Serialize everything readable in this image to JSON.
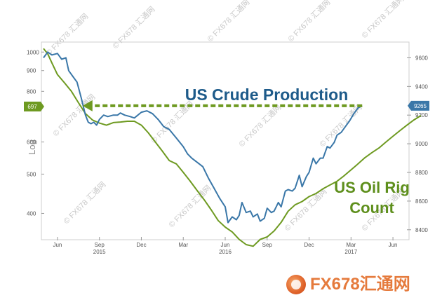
{
  "watermark": "© FX678 汇通网",
  "footer_logo": "FX678汇通网",
  "chart_data": {
    "type": "line",
    "title": "",
    "annotations": [
      "US Crude Production",
      "US Oil Rig Count"
    ],
    "left_axis_label": "Log",
    "left_axis_ticks": [
      "1000",
      "900",
      "800",
      "600",
      "500",
      "400"
    ],
    "right_axis_ticks": [
      "9600",
      "9400",
      "9200",
      "9000",
      "8800",
      "8600",
      "8400"
    ],
    "x_ticks": [
      "Jun",
      "Sep",
      "Dec",
      "Mar",
      "Jun",
      "Sep",
      "Dec",
      "Mar",
      "Jun"
    ],
    "x_year_labels": [
      {
        "label": "2015",
        "at": "Sep"
      },
      {
        "label": "2016",
        "at": "Jun"
      },
      {
        "label": "2017",
        "at": "Mar"
      }
    ],
    "left_axis": {
      "scale": "log",
      "range": [
        350,
        1050
      ]
    },
    "right_axis": {
      "scale": "linear",
      "range": [
        8350,
        9700
      ]
    },
    "x_range": [
      0,
      26
    ],
    "x_unit": "months since May 2015",
    "last_value_labels": {
      "rig_count": "697",
      "crude_production": "9265"
    },
    "series": [
      {
        "name": "US Oil Rig Count",
        "axis": "left",
        "color": "#6e9a21",
        "points": [
          [
            0,
            1020
          ],
          [
            0.3,
            990
          ],
          [
            0.6,
            940
          ],
          [
            1,
            880
          ],
          [
            1.5,
            840
          ],
          [
            2,
            800
          ],
          [
            2.5,
            750
          ],
          [
            3,
            705
          ],
          [
            3.5,
            680
          ],
          [
            4,
            668
          ],
          [
            4.5,
            660
          ],
          [
            5,
            670
          ],
          [
            5.5,
            672
          ],
          [
            6,
            675
          ],
          [
            6.5,
            675
          ],
          [
            7,
            660
          ],
          [
            7.5,
            632
          ],
          [
            8,
            600
          ],
          [
            8.5,
            570
          ],
          [
            9,
            540
          ],
          [
            9.5,
            530
          ],
          [
            10,
            505
          ],
          [
            10.5,
            480
          ],
          [
            11,
            455
          ],
          [
            11.5,
            432
          ],
          [
            12,
            408
          ],
          [
            12.5,
            384
          ],
          [
            13,
            370
          ],
          [
            13.5,
            360
          ],
          [
            14,
            345
          ],
          [
            14.5,
            335
          ],
          [
            15,
            332
          ],
          [
            15.5,
            345
          ],
          [
            16,
            350
          ],
          [
            16.5,
            362
          ],
          [
            17,
            380
          ],
          [
            17.5,
            405
          ],
          [
            18,
            420
          ],
          [
            18.5,
            428
          ],
          [
            19,
            440
          ],
          [
            19.5,
            448
          ],
          [
            20,
            460
          ],
          [
            20.5,
            470
          ],
          [
            21,
            480
          ],
          [
            21.5,
            495
          ],
          [
            22,
            512
          ],
          [
            22.5,
            530
          ],
          [
            23,
            549
          ],
          [
            23.5,
            565
          ],
          [
            24,
            580
          ],
          [
            24.5,
            600
          ],
          [
            25,
            620
          ],
          [
            25.5,
            640
          ],
          [
            26,
            660
          ],
          [
            26.5,
            680
          ],
          [
            27,
            697
          ]
        ]
      },
      {
        "name": "US Crude Production",
        "axis": "right",
        "color": "#3a77a8",
        "points": [
          [
            0,
            9600
          ],
          [
            0.3,
            9640
          ],
          [
            0.6,
            9620
          ],
          [
            1,
            9630
          ],
          [
            1.3,
            9590
          ],
          [
            1.6,
            9600
          ],
          [
            1.8,
            9510
          ],
          [
            2.1,
            9470
          ],
          [
            2.4,
            9430
          ],
          [
            2.7,
            9320
          ],
          [
            3,
            9200
          ],
          [
            3.2,
            9150
          ],
          [
            3.4,
            9140
          ],
          [
            3.6,
            9150
          ],
          [
            3.8,
            9130
          ],
          [
            4,
            9170
          ],
          [
            4.3,
            9200
          ],
          [
            4.6,
            9190
          ],
          [
            5,
            9200
          ],
          [
            5.3,
            9200
          ],
          [
            5.5,
            9215
          ],
          [
            5.8,
            9200
          ],
          [
            6.2,
            9190
          ],
          [
            6.5,
            9180
          ],
          [
            7,
            9220
          ],
          [
            7.4,
            9230
          ],
          [
            7.8,
            9210
          ],
          [
            8.2,
            9170
          ],
          [
            8.6,
            9120
          ],
          [
            9,
            9100
          ],
          [
            9.5,
            9040
          ],
          [
            10,
            8980
          ],
          [
            10.3,
            8930
          ],
          [
            10.6,
            8900
          ],
          [
            11,
            8870
          ],
          [
            11.4,
            8840
          ],
          [
            11.8,
            8760
          ],
          [
            12.2,
            8690
          ],
          [
            12.6,
            8620
          ],
          [
            13,
            8560
          ],
          [
            13.2,
            8450
          ],
          [
            13.5,
            8490
          ],
          [
            13.8,
            8470
          ],
          [
            14,
            8500
          ],
          [
            14.2,
            8590
          ],
          [
            14.5,
            8520
          ],
          [
            14.8,
            8530
          ],
          [
            15,
            8490
          ],
          [
            15.3,
            8510
          ],
          [
            15.5,
            8460
          ],
          [
            15.8,
            8480
          ],
          [
            16,
            8550
          ],
          [
            16.3,
            8520
          ],
          [
            16.5,
            8530
          ],
          [
            16.8,
            8590
          ],
          [
            17,
            8560
          ],
          [
            17.3,
            8670
          ],
          [
            17.5,
            8680
          ],
          [
            17.8,
            8670
          ],
          [
            18,
            8690
          ],
          [
            18.3,
            8780
          ],
          [
            18.5,
            8700
          ],
          [
            18.8,
            8770
          ],
          [
            19,
            8800
          ],
          [
            19.3,
            8900
          ],
          [
            19.5,
            8860
          ],
          [
            19.8,
            8900
          ],
          [
            20,
            8900
          ],
          [
            20.3,
            8980
          ],
          [
            20.5,
            8970
          ],
          [
            20.8,
            9010
          ],
          [
            21,
            9060
          ],
          [
            21.3,
            9080
          ],
          [
            21.6,
            9120
          ],
          [
            21.9,
            9160
          ],
          [
            22.2,
            9210
          ],
          [
            22.5,
            9250
          ],
          [
            22.8,
            9265
          ]
        ]
      }
    ],
    "arrow": {
      "from_month": 22.8,
      "to_month": 2.8,
      "value": 9265,
      "axis": "right",
      "color": "#6e9a21"
    }
  }
}
